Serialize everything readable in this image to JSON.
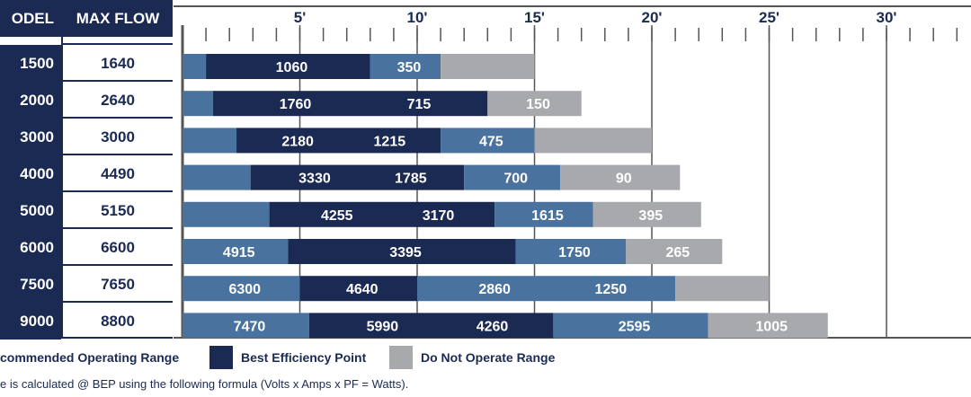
{
  "table": {
    "header": {
      "model": "ODEL",
      "max_flow": "MAX FLOW"
    },
    "rows": [
      {
        "model": "1500",
        "max_flow": "1640"
      },
      {
        "model": "2000",
        "max_flow": "2640"
      },
      {
        "model": "3000",
        "max_flow": "3000"
      },
      {
        "model": "4000",
        "max_flow": "4490"
      },
      {
        "model": "5000",
        "max_flow": "5150"
      },
      {
        "model": "6000",
        "max_flow": "6600"
      },
      {
        "model": "7500",
        "max_flow": "7650"
      },
      {
        "model": "9000",
        "max_flow": "8800"
      }
    ]
  },
  "chart_data": {
    "type": "bar",
    "orientation": "horizontal",
    "stacked": true,
    "x_axis": {
      "ticks": [
        "5'",
        "10'",
        "15'",
        "20'",
        "25'",
        "30'"
      ],
      "tick_values": [
        5,
        10,
        15,
        20,
        25,
        30
      ],
      "minor_step": 1,
      "range": [
        0,
        33
      ],
      "position": "top",
      "grid": true
    },
    "categories": [
      "1500",
      "2000",
      "3000",
      "4000",
      "5000",
      "6000",
      "7500",
      "9000"
    ],
    "segments": [
      {
        "row": "1500",
        "parts": [
          {
            "range": "recommended",
            "from": 0,
            "to": 1.0,
            "label": ""
          },
          {
            "range": "bep",
            "from": 1.0,
            "to": 8.0,
            "label": "1060"
          },
          {
            "range": "recommended",
            "from": 8.0,
            "to": 11.0,
            "label": "350"
          },
          {
            "range": "do_not_operate",
            "from": 11.0,
            "to": 15.0,
            "label": ""
          }
        ]
      },
      {
        "row": "2000",
        "parts": [
          {
            "range": "recommended",
            "from": 0,
            "to": 1.3,
            "label": ""
          },
          {
            "range": "bep",
            "from": 1.3,
            "to": 13.0,
            "label": "1760",
            "label2": "715"
          },
          {
            "range": "do_not_operate",
            "from": 13.0,
            "to": 17.0,
            "label": "150"
          }
        ]
      },
      {
        "row": "3000",
        "parts": [
          {
            "range": "recommended",
            "from": 0,
            "to": 2.3,
            "label": ""
          },
          {
            "range": "bep",
            "from": 2.3,
            "to": 11.0,
            "label": "2180",
            "label2": "1215"
          },
          {
            "range": "recommended",
            "from": 11.0,
            "to": 15.0,
            "label": "475"
          },
          {
            "range": "do_not_operate",
            "from": 15.0,
            "to": 20.0,
            "label": ""
          }
        ]
      },
      {
        "row": "4000",
        "parts": [
          {
            "range": "recommended",
            "from": 0,
            "to": 2.9,
            "label": ""
          },
          {
            "range": "bep",
            "from": 2.9,
            "to": 12.0,
            "label": "3330",
            "label2": "1785"
          },
          {
            "range": "recommended",
            "from": 12.0,
            "to": 16.1,
            "label": "700"
          },
          {
            "range": "do_not_operate",
            "from": 16.1,
            "to": 21.2,
            "label": "90"
          }
        ]
      },
      {
        "row": "5000",
        "parts": [
          {
            "range": "recommended",
            "from": 0,
            "to": 3.7,
            "label": ""
          },
          {
            "range": "bep",
            "from": 3.7,
            "to": 13.3,
            "label": "4255",
            "label2": "3170"
          },
          {
            "range": "recommended",
            "from": 13.3,
            "to": 17.5,
            "label": "1615"
          },
          {
            "range": "do_not_operate",
            "from": 17.5,
            "to": 22.1,
            "label": "395"
          }
        ]
      },
      {
        "row": "6000",
        "parts": [
          {
            "range": "recommended",
            "from": 0,
            "to": 4.5,
            "label": "4915"
          },
          {
            "range": "bep",
            "from": 4.5,
            "to": 14.2,
            "label": "3395"
          },
          {
            "range": "recommended",
            "from": 14.2,
            "to": 18.9,
            "label": "1750"
          },
          {
            "range": "do_not_operate",
            "from": 18.9,
            "to": 23.0,
            "label": "265"
          }
        ]
      },
      {
        "row": "7500",
        "parts": [
          {
            "range": "recommended",
            "from": 0,
            "to": 5.0,
            "label": "6300"
          },
          {
            "range": "bep",
            "from": 5.0,
            "to": 10.0,
            "label": "4640"
          },
          {
            "range": "recommended",
            "from": 10.0,
            "to": 21.0,
            "label": "2860",
            "label2": "1250"
          },
          {
            "range": "do_not_operate",
            "from": 21.0,
            "to": 25.0,
            "label": ""
          }
        ]
      },
      {
        "row": "9000",
        "parts": [
          {
            "range": "recommended",
            "from": 0,
            "to": 5.4,
            "label": "7470"
          },
          {
            "range": "bep",
            "from": 5.4,
            "to": 15.8,
            "label": "5990",
            "label2": "4260"
          },
          {
            "range": "recommended",
            "from": 15.8,
            "to": 22.4,
            "label": "2595"
          },
          {
            "range": "do_not_operate",
            "from": 22.4,
            "to": 27.5,
            "label": "1005"
          }
        ]
      }
    ],
    "colors": {
      "recommended": "#4a729e",
      "bep": "#1b2a52",
      "do_not_operate": "#a7a9ac",
      "grid": "#555555",
      "text": "#1b2a52"
    },
    "legend": [
      {
        "key": "recommended",
        "label": "commended Operating Range"
      },
      {
        "key": "bep",
        "label": "Best Efficiency Point"
      },
      {
        "key": "do_not_operate",
        "label": "Do Not Operate Range"
      }
    ],
    "legend_placement": "bottom"
  },
  "footnote": "e is calculated @ BEP using the following formula   (Volts x Amps x PF = Watts)."
}
